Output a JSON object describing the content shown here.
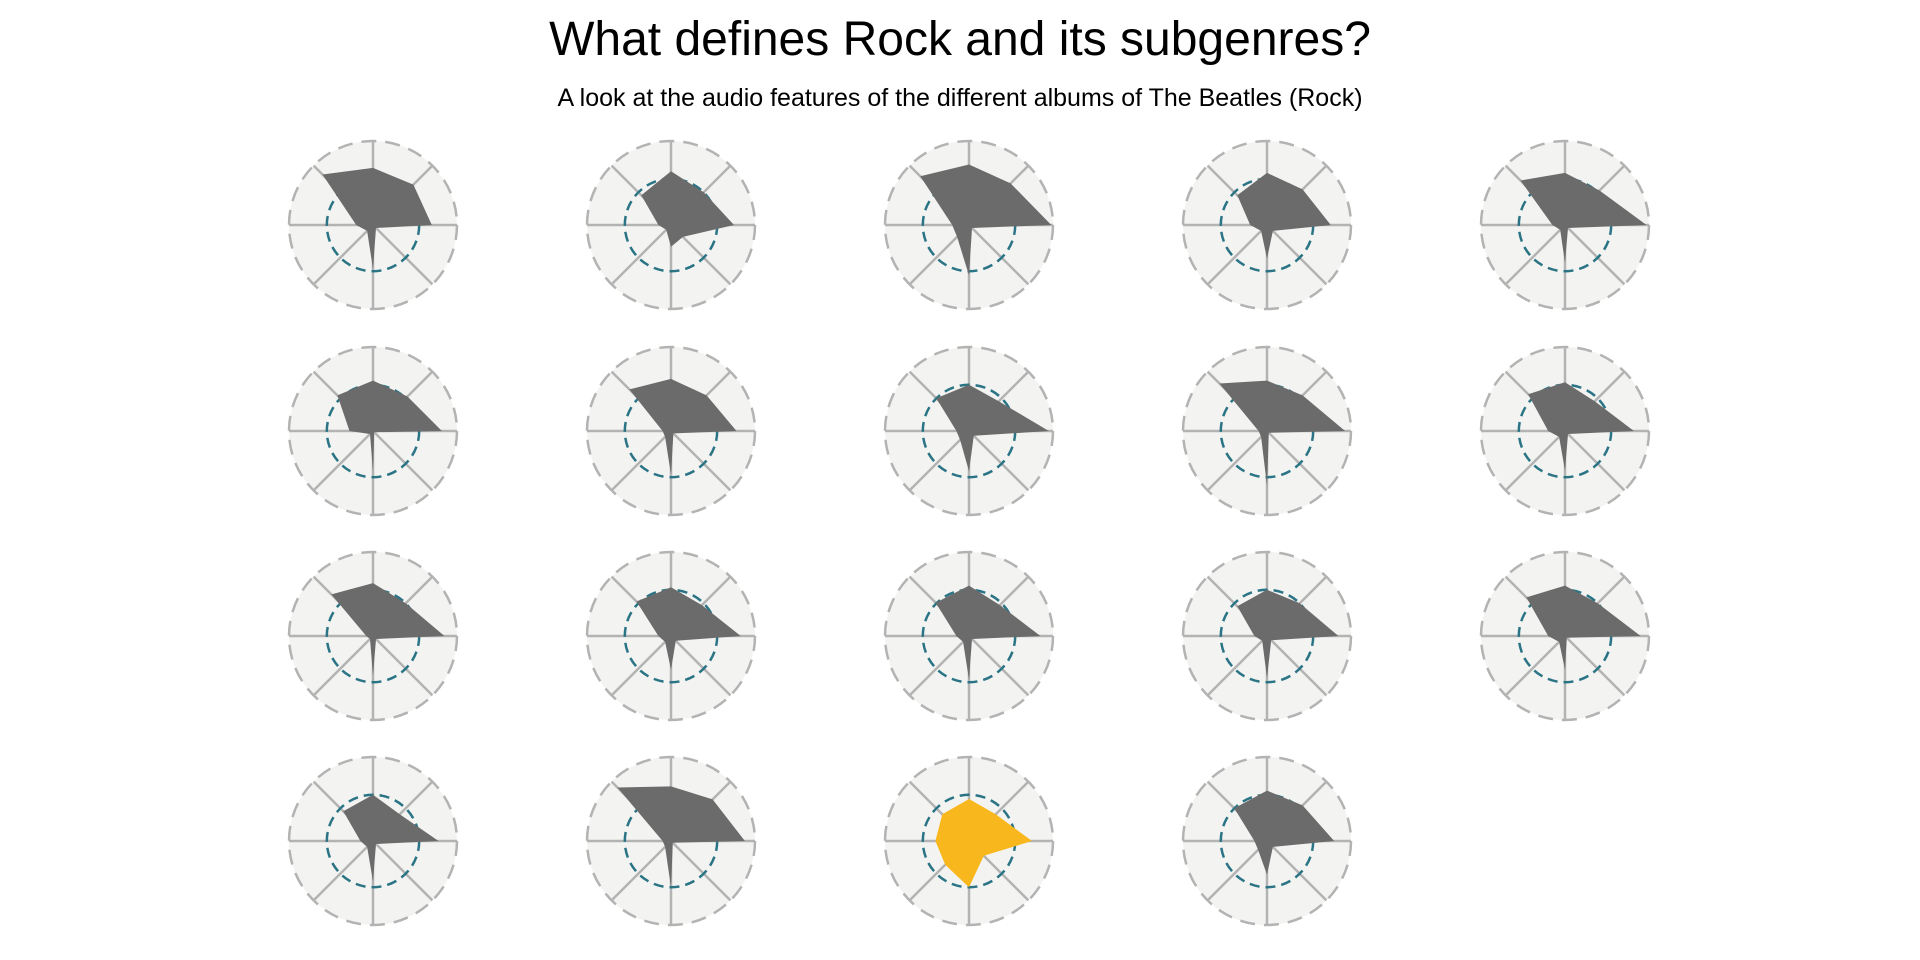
{
  "chart_data": {
    "type": "radar",
    "title": "What defines Rock and its subgenres?",
    "subtitle": "A look at the audio features of the different albums of The Beatles (Rock)",
    "axes_count": 8,
    "range": [
      0,
      1
    ],
    "reference_ring": 0.55,
    "grid": true,
    "colors": {
      "background_disc": "#f3f3f1",
      "grid_lines": "#b3b3b3",
      "reference_ring": "#2a7485",
      "album_fill": "#6b6b6b",
      "highlight_fill": "#f8b71c"
    },
    "series": [
      {
        "values": [
          0.68,
          0.68,
          0.7,
          0.05,
          0.52,
          0.1,
          0.2,
          0.85
        ],
        "highlight": false
      },
      {
        "values": [
          0.64,
          0.55,
          0.75,
          0.2,
          0.26,
          0.08,
          0.15,
          0.5
        ],
        "highlight": false
      },
      {
        "values": [
          0.72,
          0.7,
          0.98,
          0.05,
          0.6,
          0.2,
          0.2,
          0.82
        ],
        "highlight": false
      },
      {
        "values": [
          0.62,
          0.6,
          0.76,
          0.1,
          0.4,
          0.1,
          0.2,
          0.5
        ],
        "highlight": false
      },
      {
        "values": [
          0.62,
          0.58,
          0.97,
          0.05,
          0.45,
          0.08,
          0.15,
          0.75
        ],
        "highlight": false
      },
      {
        "values": [
          0.6,
          0.58,
          0.82,
          0.02,
          0.48,
          0.05,
          0.28,
          0.6
        ],
        "highlight": false
      },
      {
        "values": [
          0.62,
          0.6,
          0.78,
          0.04,
          0.52,
          0.1,
          0.1,
          0.7
        ],
        "highlight": false
      },
      {
        "values": [
          0.55,
          0.5,
          0.95,
          0.08,
          0.48,
          0.15,
          0.15,
          0.55
        ],
        "highlight": false
      },
      {
        "values": [
          0.6,
          0.6,
          0.93,
          0.03,
          0.65,
          0.1,
          0.1,
          0.8
        ],
        "highlight": false
      },
      {
        "values": [
          0.58,
          0.5,
          0.82,
          0.05,
          0.47,
          0.1,
          0.2,
          0.62
        ],
        "highlight": false
      },
      {
        "values": [
          0.63,
          0.55,
          0.85,
          0.05,
          0.47,
          0.05,
          0.08,
          0.7
        ],
        "highlight": false
      },
      {
        "values": [
          0.58,
          0.52,
          0.83,
          0.08,
          0.4,
          0.1,
          0.15,
          0.58
        ],
        "highlight": false
      },
      {
        "values": [
          0.6,
          0.52,
          0.85,
          0.05,
          0.52,
          0.1,
          0.15,
          0.56
        ],
        "highlight": false
      },
      {
        "values": [
          0.55,
          0.55,
          0.85,
          0.07,
          0.5,
          0.08,
          0.15,
          0.5
        ],
        "highlight": false
      },
      {
        "values": [
          0.6,
          0.55,
          0.9,
          0.03,
          0.4,
          0.1,
          0.2,
          0.65
        ],
        "highlight": false
      },
      {
        "values": [
          0.55,
          0.45,
          0.78,
          0.05,
          0.48,
          0.1,
          0.15,
          0.5
        ],
        "highlight": false
      },
      {
        "values": [
          0.65,
          0.7,
          0.88,
          0.03,
          0.55,
          0.1,
          0.1,
          0.9
        ],
        "highlight": false
      },
      {
        "values": [
          0.5,
          0.45,
          0.75,
          0.25,
          0.55,
          0.4,
          0.4,
          0.45
        ],
        "highlight": true
      },
      {
        "values": [
          0.6,
          0.6,
          0.8,
          0.1,
          0.4,
          0.15,
          0.15,
          0.55
        ],
        "highlight": false
      }
    ]
  }
}
